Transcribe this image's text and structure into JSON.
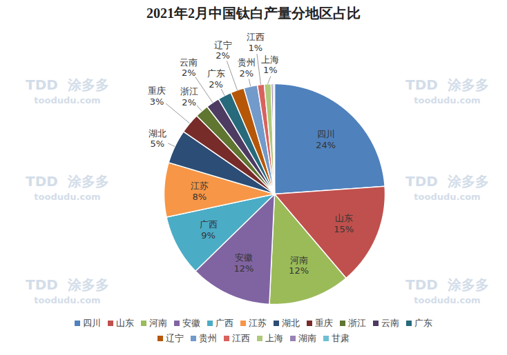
{
  "chart_data": {
    "type": "pie",
    "title": "2021年2月中国钛白产量分地区占比",
    "categories": [
      "四川",
      "山东",
      "河南",
      "安徽",
      "广西",
      "江苏",
      "湖北",
      "重庆",
      "浙江",
      "云南",
      "广东",
      "辽宁",
      "贵州",
      "江西",
      "上海",
      "湖南",
      "甘肃"
    ],
    "values": [
      24,
      15,
      12,
      12,
      9,
      8,
      5,
      3,
      2,
      2,
      2,
      2,
      2,
      1,
      1,
      0.3,
      0.2
    ],
    "value_labels": [
      "24%",
      "15%",
      "12%",
      "12%",
      "9%",
      "8%",
      "5%",
      "3%",
      "2%",
      "2%",
      "2%",
      "2%",
      "2%",
      "1%",
      "1%",
      null,
      null
    ],
    "colors": [
      "#4F81BD",
      "#C0504D",
      "#9BBB59",
      "#8064A2",
      "#4BACC6",
      "#F79646",
      "#2C4D75",
      "#772C2A",
      "#5F7530",
      "#4D3B62",
      "#276A7C",
      "#B65708",
      "#729ACA",
      "#D9625E",
      "#AFC97A",
      "#9983B5",
      "#6FBFD4"
    ],
    "data_labels": true,
    "legend": "bottom",
    "annotations": [
      "TDD",
      "涂多多",
      "toodudu.com"
    ]
  }
}
